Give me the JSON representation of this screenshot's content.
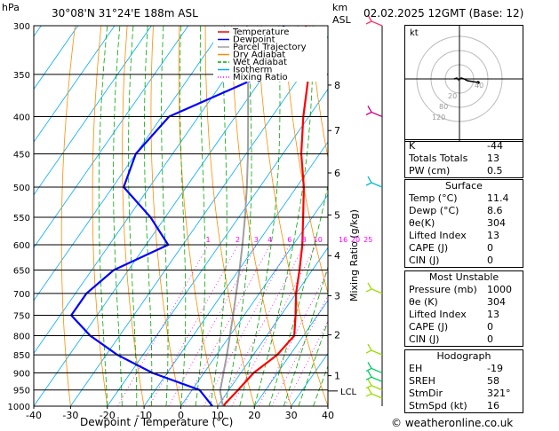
{
  "header": {
    "location": "30°08'N  31°24'E  188m  ASL",
    "datetime": "02.02.2025  12GMT  (Base: 12)",
    "hpa_label": "hPa",
    "km_label": "km",
    "asl_label": "ASL"
  },
  "chart_data": {
    "type": "line",
    "subtype": "skew-t log-p",
    "xlabel": "Dewpoint / Temperature (°C)",
    "ylabel_right": "Mixing Ratio (g/kg)",
    "x_ticks": [
      -40,
      -30,
      -20,
      -10,
      0,
      10,
      20,
      30,
      40
    ],
    "pressure_levels": [
      300,
      350,
      400,
      450,
      500,
      550,
      600,
      650,
      700,
      750,
      800,
      850,
      900,
      950,
      1000
    ],
    "km_ticks": [
      {
        "km": "1",
        "p": 908
      },
      {
        "km": "2",
        "p": 798
      },
      {
        "km": "3",
        "p": 705
      },
      {
        "km": "4",
        "p": 621
      },
      {
        "km": "5",
        "p": 546
      },
      {
        "km": "6",
        "p": 478
      },
      {
        "km": "7",
        "p": 418
      },
      {
        "km": "8",
        "p": 362
      }
    ],
    "lcl": {
      "label": "LCL",
      "p": 953
    },
    "mixing_ratio_labels": [
      "1",
      "2",
      "3",
      "4",
      "6",
      "8",
      "10",
      "16",
      "20",
      "25"
    ],
    "mixing_ratio_values": [
      1,
      2,
      3,
      4,
      6,
      8,
      10,
      16,
      20,
      25
    ],
    "legend": [
      "Temperature",
      "Dewpoint",
      "Parcel Trajectory",
      "Dry Adiabat",
      "Wet Adiabat",
      "Isotherm",
      "Mixing Ratio"
    ],
    "legend_position": "top-right",
    "series": [
      {
        "name": "Temperature",
        "color": "#ff0000",
        "points": [
          [
            1000,
            11.4
          ],
          [
            950,
            12.5
          ],
          [
            900,
            13.5
          ],
          [
            850,
            16.5
          ],
          [
            800,
            17.5
          ],
          [
            750,
            14.0
          ],
          [
            700,
            10.0
          ],
          [
            650,
            6.5
          ],
          [
            600,
            2.5
          ],
          [
            550,
            -2.5
          ],
          [
            500,
            -8.0
          ],
          [
            450,
            -15.0
          ],
          [
            400,
            -21.5
          ],
          [
            350,
            -28.0
          ],
          [
            300,
            -38.0
          ]
        ]
      },
      {
        "name": "Dewpoint",
        "color": "#0000ff",
        "points": [
          [
            1000,
            8.6
          ],
          [
            950,
            2.0
          ],
          [
            900,
            -14.0
          ],
          [
            850,
            -27.0
          ],
          [
            800,
            -38.0
          ],
          [
            750,
            -47.0
          ],
          [
            700,
            -47.0
          ],
          [
            650,
            -44.0
          ],
          [
            600,
            -34.0
          ],
          [
            550,
            -44.0
          ],
          [
            500,
            -57.0
          ],
          [
            450,
            -60.0
          ],
          [
            400,
            -58.0
          ],
          [
            350,
            -40.0
          ],
          [
            300,
            -44.0
          ]
        ]
      },
      {
        "name": "Parcel Trajectory",
        "color": "#a0a0a0",
        "points": [
          [
            1000,
            11.4
          ],
          [
            953,
            7.8
          ],
          [
            900,
            5.3
          ],
          [
            850,
            2.8
          ],
          [
            800,
            0.0
          ],
          [
            750,
            -3.0
          ],
          [
            700,
            -6.3
          ],
          [
            650,
            -9.8
          ],
          [
            600,
            -13.8
          ],
          [
            550,
            -18.3
          ],
          [
            500,
            -23.5
          ],
          [
            450,
            -29.5
          ],
          [
            400,
            -36.5
          ],
          [
            350,
            -44.5
          ],
          [
            300,
            -54.0
          ]
        ]
      }
    ],
    "colors": {
      "temperature": "#ff0000",
      "dewpoint": "#0000ff",
      "parcel": "#a0a0a0",
      "dry_adiabat": "#ff8c00",
      "wet_adiabat": "#00aa00",
      "isotherm": "#00aaff",
      "mixing_ratio": "#ff00ff"
    },
    "wind_barbs": [
      {
        "p": 300,
        "color": "#ff3366"
      },
      {
        "p": 400,
        "color": "#cc0088"
      },
      {
        "p": 500,
        "color": "#00bbcc"
      },
      {
        "p": 700,
        "color": "#99dd00"
      },
      {
        "p": 850,
        "color": "#99dd00"
      },
      {
        "p": 900,
        "color": "#00cc66"
      },
      {
        "p": 925,
        "color": "#00cc66"
      },
      {
        "p": 950,
        "color": "#99dd00"
      },
      {
        "p": 975,
        "color": "#99dd00"
      }
    ]
  },
  "hodograph": {
    "title": "kt",
    "ring_labels": [
      "20",
      "40"
    ],
    "ring_labels_extra": [
      "120",
      "80"
    ]
  },
  "indices": {
    "rows": [
      {
        "label": "K",
        "value": "-44"
      },
      {
        "label": "Totals Totals",
        "value": "13"
      },
      {
        "label": "PW (cm)",
        "value": "0.5"
      }
    ]
  },
  "surface": {
    "title": "Surface",
    "rows": [
      {
        "label": "Temp (°C)",
        "value": "11.4"
      },
      {
        "label": "Dewp (°C)",
        "value": "8.6"
      },
      {
        "label": "θe(K)",
        "value": "304"
      },
      {
        "label": "Lifted Index",
        "value": "13"
      },
      {
        "label": "CAPE (J)",
        "value": "0"
      },
      {
        "label": "CIN (J)",
        "value": "0"
      }
    ]
  },
  "most_unstable": {
    "title": "Most Unstable",
    "rows": [
      {
        "label": "Pressure (mb)",
        "value": "1000"
      },
      {
        "label": "θe (K)",
        "value": "304"
      },
      {
        "label": "Lifted Index",
        "value": "13"
      },
      {
        "label": "CAPE (J)",
        "value": "0"
      },
      {
        "label": "CIN (J)",
        "value": "0"
      }
    ]
  },
  "hodograph_table": {
    "title": "Hodograph",
    "rows": [
      {
        "label": "EH",
        "value": "-19"
      },
      {
        "label": "SREH",
        "value": "58"
      },
      {
        "label": "StmDir",
        "value": "321°"
      },
      {
        "label": "StmSpd (kt)",
        "value": "16"
      }
    ]
  },
  "footer": {
    "credit": "© weatheronline.co.uk"
  }
}
